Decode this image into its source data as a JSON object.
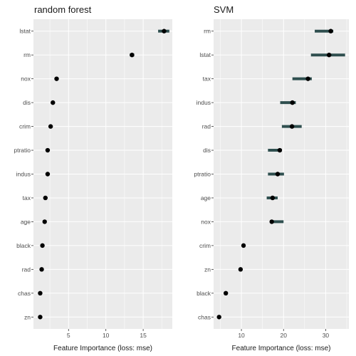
{
  "chart_data": [
    {
      "type": "dot-interval",
      "title": "random forest",
      "xlabel": "Feature Importance (loss: mse)",
      "xlim": [
        0.3,
        18.9
      ],
      "xticks": [
        5,
        10,
        15
      ],
      "grid": true,
      "features": [
        {
          "name": "lstat",
          "value": 17.8,
          "low": 17.0,
          "high": 18.5
        },
        {
          "name": "rm",
          "value": 13.5,
          "low": 13.2,
          "high": 13.8
        },
        {
          "name": "nox",
          "value": 3.4,
          "low": 3.3,
          "high": 3.5
        },
        {
          "name": "dis",
          "value": 2.9,
          "low": 2.8,
          "high": 3.0
        },
        {
          "name": "crim",
          "value": 2.6,
          "low": 2.5,
          "high": 2.7
        },
        {
          "name": "ptratio",
          "value": 2.2,
          "low": 2.1,
          "high": 2.3
        },
        {
          "name": "indus",
          "value": 2.2,
          "low": 2.1,
          "high": 2.3
        },
        {
          "name": "tax",
          "value": 1.9,
          "low": 1.8,
          "high": 2.0
        },
        {
          "name": "age",
          "value": 1.8,
          "low": 1.7,
          "high": 1.9
        },
        {
          "name": "black",
          "value": 1.5,
          "low": 1.4,
          "high": 1.6
        },
        {
          "name": "rad",
          "value": 1.4,
          "low": 1.3,
          "high": 1.5
        },
        {
          "name": "chas",
          "value": 1.2,
          "low": 1.1,
          "high": 1.3
        },
        {
          "name": "zn",
          "value": 1.2,
          "low": 1.1,
          "high": 1.3
        }
      ]
    },
    {
      "type": "dot-interval",
      "title": "SVM",
      "xlabel": "Feature Importance (loss: mse)",
      "xlim": [
        3.4,
        35.5
      ],
      "xticks": [
        10,
        20,
        30
      ],
      "grid": true,
      "features": [
        {
          "name": "rm",
          "value": 31.2,
          "low": 27.4,
          "high": 31.8
        },
        {
          "name": "lstat",
          "value": 30.8,
          "low": 26.5,
          "high": 34.6
        },
        {
          "name": "tax",
          "value": 25.8,
          "low": 22.1,
          "high": 26.7
        },
        {
          "name": "indus",
          "value": 22.1,
          "low": 19.2,
          "high": 22.9
        },
        {
          "name": "rad",
          "value": 22.0,
          "low": 19.6,
          "high": 24.3
        },
        {
          "name": "dis",
          "value": 19.1,
          "low": 16.3,
          "high": 19.6
        },
        {
          "name": "ptratio",
          "value": 18.6,
          "low": 16.3,
          "high": 20.1
        },
        {
          "name": "age",
          "value": 17.4,
          "low": 16.0,
          "high": 18.6
        },
        {
          "name": "nox",
          "value": 17.2,
          "low": 17.0,
          "high": 20.0
        },
        {
          "name": "crim",
          "value": 10.5,
          "low": 10.2,
          "high": 10.8
        },
        {
          "name": "zn",
          "value": 9.8,
          "low": 9.6,
          "high": 10.0
        },
        {
          "name": "black",
          "value": 6.3,
          "low": 6.0,
          "high": 6.6
        },
        {
          "name": "chas",
          "value": 4.7,
          "low": 4.4,
          "high": 4.9
        }
      ]
    }
  ],
  "colors": {
    "panel_bg": "#EBEBEB",
    "grid": "#FFFFFF",
    "interval": "#2F4F4F",
    "dot": "#000000"
  }
}
